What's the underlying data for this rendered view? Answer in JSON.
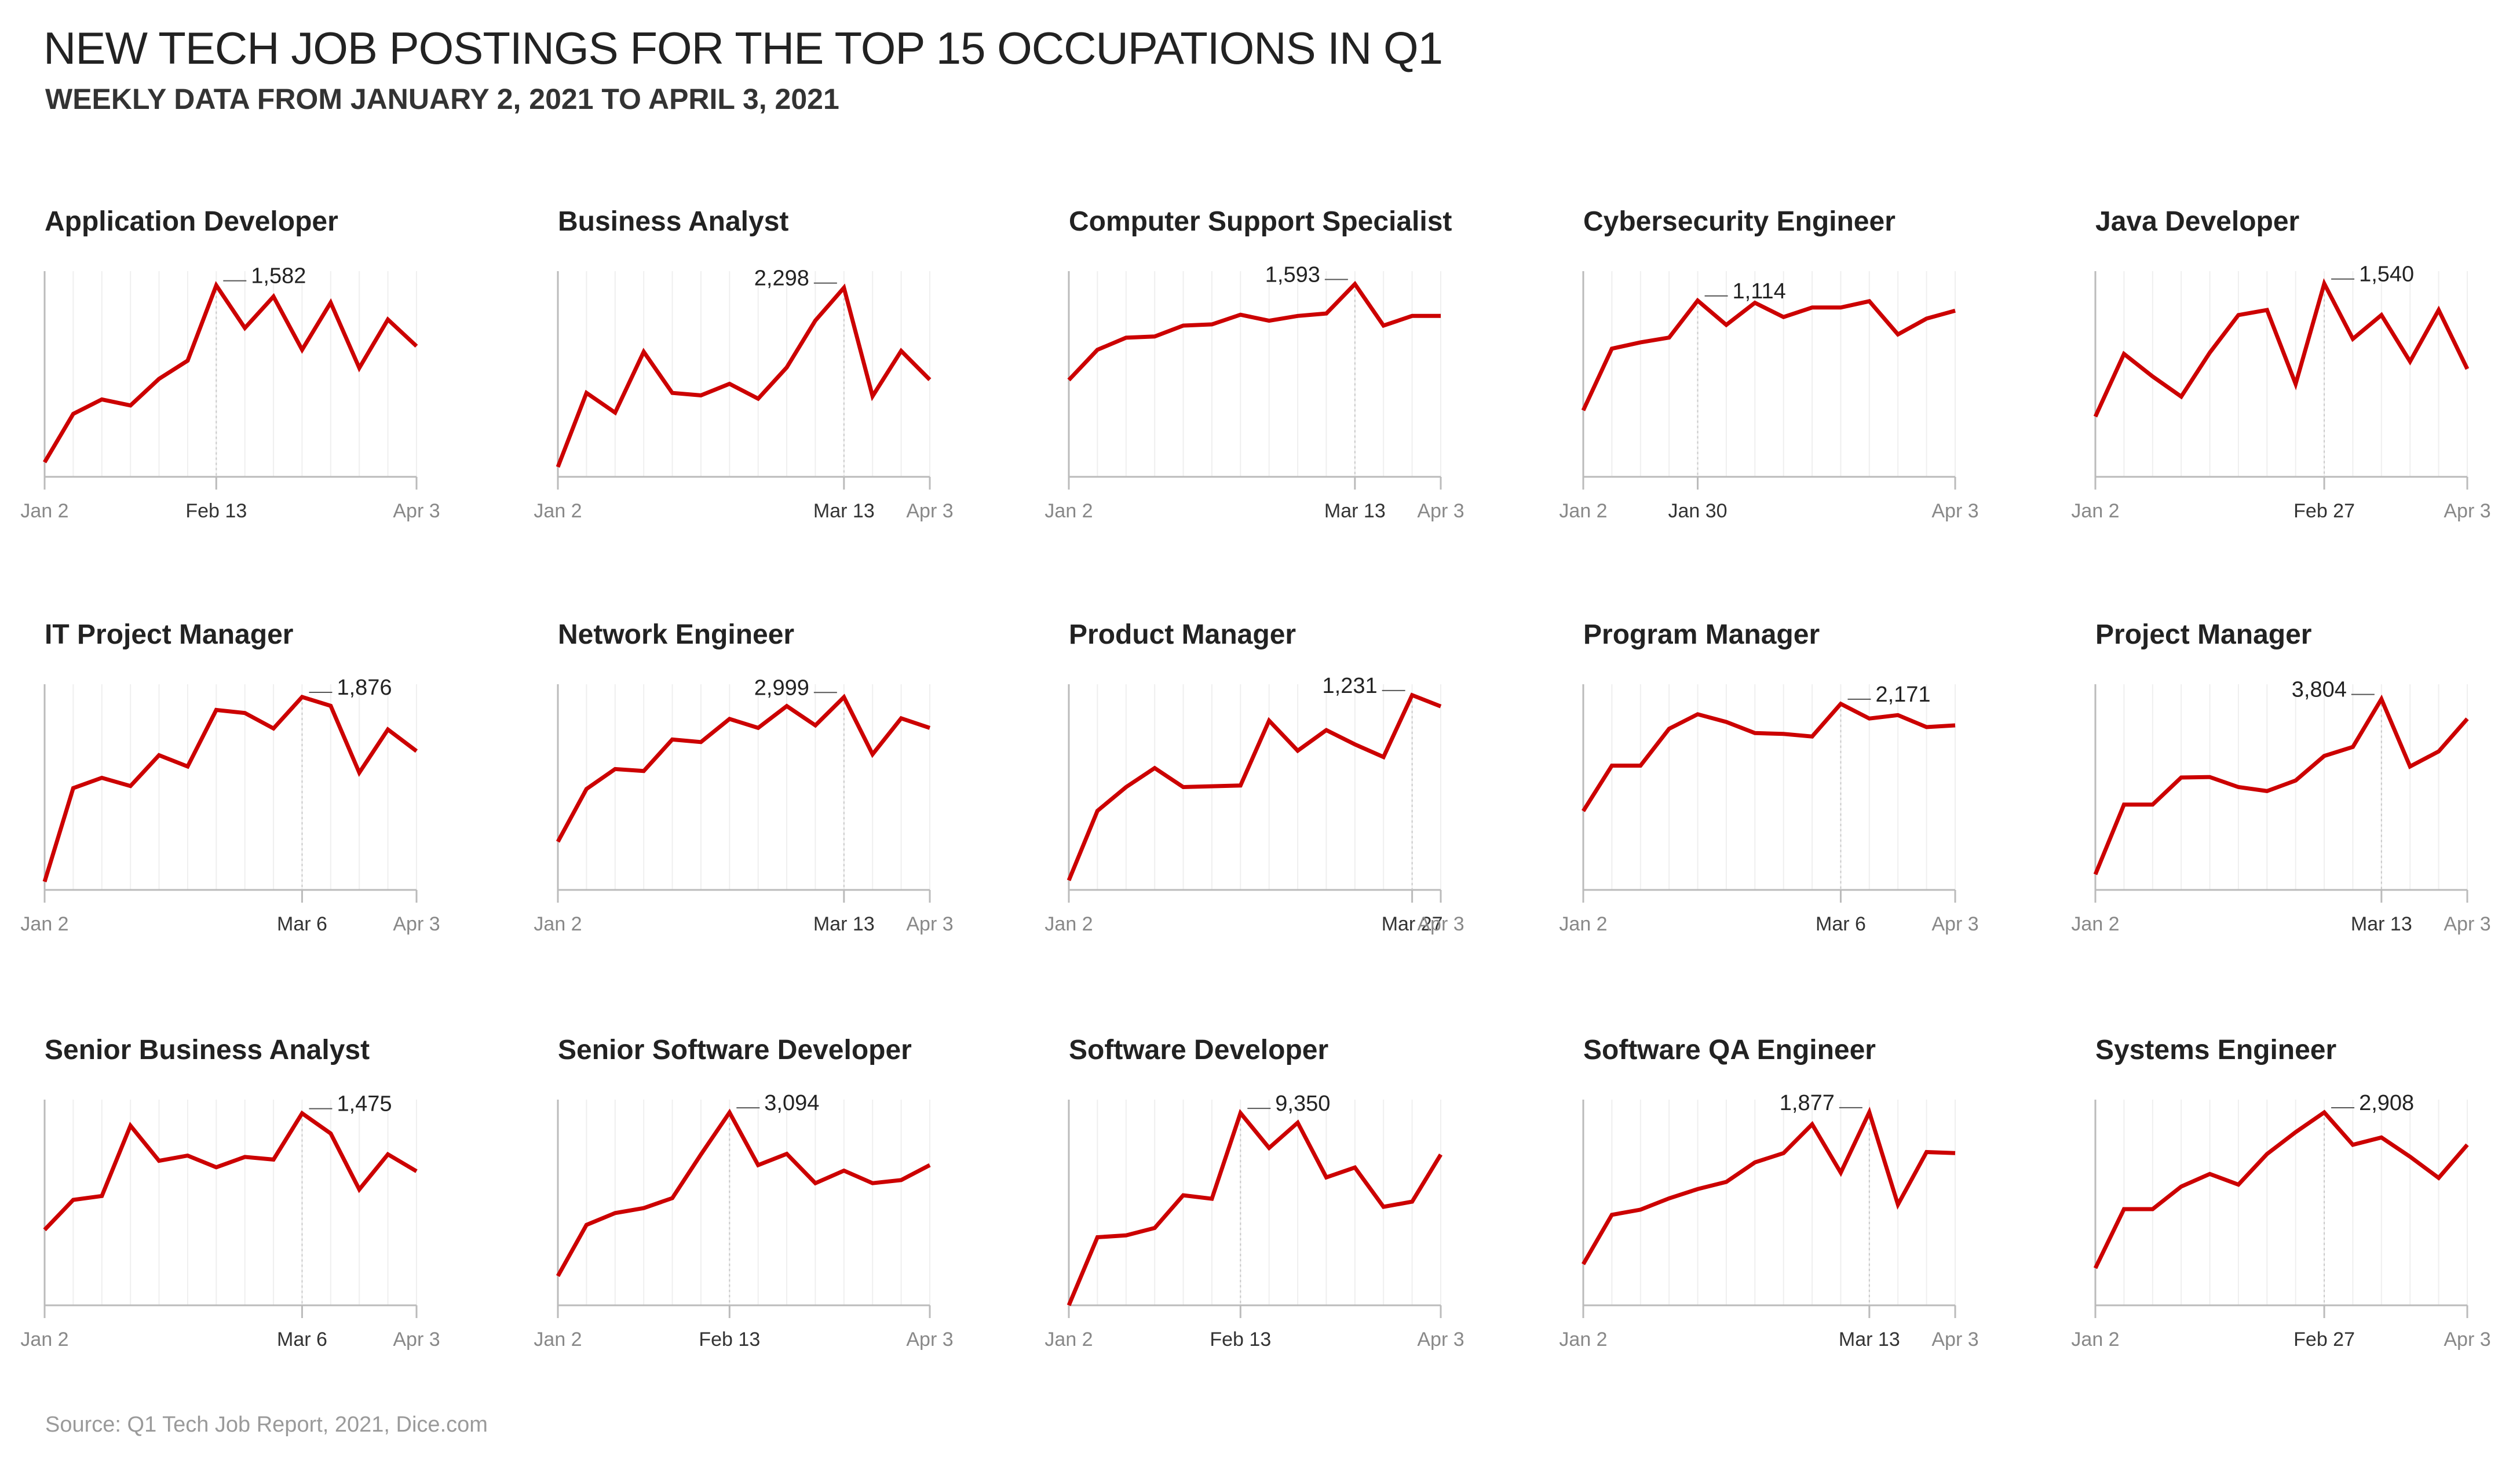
{
  "title": "NEW TECH JOB POSTINGS FOR THE TOP 15 OCCUPATIONS IN Q1",
  "subtitle": "WEEKLY DATA FROM JANUARY 2, 2021 TO APRIL 3, 2021",
  "source": "Source: Q1 Tech Job Report, 2021, Dice.com",
  "colors": {
    "line": "#cc0000",
    "axis": "#bbbbbb",
    "guide": "#efefef",
    "text": "#222222",
    "tick": "#888888"
  },
  "chart_data": [
    {
      "type": "line",
      "title": "Application Developer",
      "x": [
        "Jan 2",
        "Jan 9",
        "Jan 16",
        "Jan 23",
        "Jan 30",
        "Feb 6",
        "Feb 13",
        "Feb 20",
        "Feb 27",
        "Mar 6",
        "Mar 13",
        "Mar 20",
        "Mar 27",
        "Apr 3"
      ],
      "ylim": [
        0,
        1700
      ],
      "series": [
        {
          "values": [
            120,
            520,
            640,
            590,
            810,
            960,
            1582,
            1230,
            1490,
            1050,
            1440,
            900,
            1300,
            1080
          ]
        }
      ],
      "tick_labels": [
        "Jan 2",
        "Feb 13",
        "Apr 3"
      ],
      "peak_label": "1,582",
      "peak_index": 6
    },
    {
      "type": "line",
      "title": "Business Analyst",
      "x": [
        "Jan 2",
        "Jan 9",
        "Jan 16",
        "Jan 23",
        "Jan 30",
        "Feb 6",
        "Feb 13",
        "Feb 20",
        "Feb 27",
        "Mar 6",
        "Mar 13",
        "Mar 20",
        "Mar 27",
        "Apr 3"
      ],
      "ylim": [
        0,
        2500
      ],
      "series": [
        {
          "values": [
            120,
            1020,
            780,
            1520,
            1020,
            990,
            1130,
            950,
            1330,
            1900,
            2298,
            980,
            1530,
            1180
          ]
        }
      ],
      "tick_labels": [
        "Jan 2",
        "Mar 13",
        "Apr 3"
      ],
      "peak_label": "2,298",
      "peak_index": 10
    },
    {
      "type": "line",
      "title": "Computer Support Specialist",
      "x": [
        "Jan 2",
        "Jan 9",
        "Jan 16",
        "Jan 23",
        "Jan 30",
        "Feb 6",
        "Feb 13",
        "Feb 20",
        "Feb 27",
        "Mar 6",
        "Mar 13",
        "Mar 20",
        "Mar 27",
        "Apr 3"
      ],
      "ylim": [
        0,
        1700
      ],
      "series": [
        {
          "values": [
            800,
            1050,
            1150,
            1160,
            1250,
            1260,
            1340,
            1290,
            1330,
            1350,
            1593,
            1250,
            1330,
            1330
          ]
        }
      ],
      "tick_labels": [
        "Jan 2",
        "Mar 13",
        "Apr 3"
      ],
      "peak_label": "1,593",
      "peak_index": 10
    },
    {
      "type": "line",
      "title": "Cybersecurity Engineer",
      "x": [
        "Jan 2",
        "Jan 9",
        "Jan 16",
        "Jan 23",
        "Jan 30",
        "Feb 6",
        "Feb 13",
        "Feb 20",
        "Feb 27",
        "Mar 6",
        "Mar 13",
        "Mar 20",
        "Mar 27",
        "Apr 3"
      ],
      "ylim": [
        0,
        1300
      ],
      "series": [
        {
          "values": [
            420,
            810,
            850,
            880,
            1114,
            960,
            1100,
            1010,
            1070,
            1070,
            1110,
            900,
            1000,
            1050
          ]
        }
      ],
      "tick_labels": [
        "Jan 2",
        "Jan 30",
        "Apr 3"
      ],
      "peak_label": "1,114",
      "peak_index": 4
    },
    {
      "type": "line",
      "title": "Java Developer",
      "x": [
        "Jan 2",
        "Jan 9",
        "Jan 16",
        "Jan 23",
        "Jan 30",
        "Feb 6",
        "Feb 13",
        "Feb 20",
        "Feb 27",
        "Mar 6",
        "Mar 13",
        "Mar 20",
        "Mar 27",
        "Apr 3"
      ],
      "ylim": [
        0,
        1640
      ],
      "series": [
        {
          "values": [
            480,
            980,
            800,
            640,
            990,
            1290,
            1330,
            740,
            1540,
            1100,
            1290,
            920,
            1330,
            860
          ]
        }
      ],
      "tick_labels": [
        "Jan 2",
        "Feb 27",
        "Apr 3"
      ],
      "peak_label": "1,540",
      "peak_index": 8
    },
    {
      "type": "line",
      "title": "IT Project Manager",
      "x": [
        "Jan 2",
        "Jan 9",
        "Jan 16",
        "Jan 23",
        "Jan 30",
        "Feb 6",
        "Feb 13",
        "Feb 20",
        "Feb 27",
        "Mar 6",
        "Mar 13",
        "Mar 20",
        "Mar 27",
        "Apr 3"
      ],
      "ylim": [
        0,
        2000
      ],
      "series": [
        {
          "values": [
            80,
            990,
            1090,
            1010,
            1310,
            1200,
            1750,
            1720,
            1570,
            1876,
            1790,
            1140,
            1560,
            1350
          ]
        }
      ],
      "tick_labels": [
        "Jan 2",
        "Mar 6",
        "Apr 3"
      ],
      "peak_label": "1,876",
      "peak_index": 9
    },
    {
      "type": "line",
      "title": "Network Engineer",
      "x": [
        "Jan 2",
        "Jan 9",
        "Jan 16",
        "Jan 23",
        "Jan 30",
        "Feb 6",
        "Feb 13",
        "Feb 20",
        "Feb 27",
        "Mar 6",
        "Mar 13",
        "Mar 20",
        "Mar 27",
        "Apr 3"
      ],
      "ylim": [
        0,
        3200
      ],
      "series": [
        {
          "values": [
            750,
            1570,
            1880,
            1850,
            2340,
            2300,
            2660,
            2520,
            2860,
            2560,
            2999,
            2110,
            2670,
            2520
          ]
        }
      ],
      "tick_labels": [
        "Jan 2",
        "Mar 13",
        "Apr 3"
      ],
      "peak_label": "2,999",
      "peak_index": 10
    },
    {
      "type": "line",
      "title": "Product Manager",
      "x": [
        "Jan 2",
        "Jan 9",
        "Jan 16",
        "Jan 23",
        "Jan 30",
        "Feb 6",
        "Feb 13",
        "Feb 20",
        "Feb 27",
        "Mar 6",
        "Mar 13",
        "Mar 20",
        "Mar 27",
        "Apr 3"
      ],
      "ylim": [
        0,
        1300
      ],
      "series": [
        {
          "values": [
            60,
            500,
            650,
            770,
            650,
            655,
            660,
            1070,
            880,
            1010,
            920,
            840,
            1231,
            1160
          ]
        }
      ],
      "tick_labels": [
        "Jan 2",
        "Mar 27",
        "Apr 3"
      ],
      "peak_label": "1,231",
      "peak_index": 12
    },
    {
      "type": "line",
      "title": "Program Manager",
      "x": [
        "Jan 2",
        "Jan 9",
        "Jan 16",
        "Jan 23",
        "Jan 30",
        "Feb 6",
        "Feb 13",
        "Feb 20",
        "Feb 27",
        "Mar 6",
        "Mar 13",
        "Mar 20",
        "Mar 27",
        "Apr 3"
      ],
      "ylim": [
        0,
        2400
      ],
      "series": [
        {
          "values": [
            920,
            1450,
            1450,
            1880,
            2050,
            1960,
            1830,
            1820,
            1790,
            2171,
            2000,
            2040,
            1900,
            1920
          ]
        }
      ],
      "tick_labels": [
        "Jan 2",
        "Mar 6",
        "Apr 3"
      ],
      "peak_label": "2,171",
      "peak_index": 9
    },
    {
      "type": "line",
      "title": "Project Manager",
      "x": [
        "Jan 2",
        "Jan 9",
        "Jan 16",
        "Jan 23",
        "Jan 30",
        "Feb 6",
        "Feb 13",
        "Feb 20",
        "Feb 27",
        "Mar 6",
        "Mar 13",
        "Mar 20",
        "Mar 27",
        "Apr 3"
      ],
      "ylim": [
        0,
        4100
      ],
      "series": [
        {
          "values": [
            310,
            1700,
            1700,
            2240,
            2250,
            2050,
            1970,
            2180,
            2670,
            2850,
            3804,
            2460,
            2760,
            3410
          ]
        }
      ],
      "tick_labels": [
        "Jan 2",
        "Mar 13",
        "Apr 3"
      ],
      "peak_label": "3,804",
      "peak_index": 10
    },
    {
      "type": "line",
      "title": "Senior Business Analyst",
      "x": [
        "Jan 2",
        "Jan 9",
        "Jan 16",
        "Jan 23",
        "Jan 30",
        "Feb 6",
        "Feb 13",
        "Feb 20",
        "Feb 27",
        "Mar 6",
        "Mar 13",
        "Mar 20",
        "Mar 27",
        "Apr 3"
      ],
      "ylim": [
        0,
        1580
      ],
      "series": [
        {
          "values": [
            580,
            810,
            840,
            1380,
            1110,
            1150,
            1060,
            1140,
            1120,
            1475,
            1320,
            890,
            1160,
            1030
          ]
        }
      ],
      "tick_labels": [
        "Jan 2",
        "Mar 6",
        "Apr 3"
      ],
      "peak_label": "1,475",
      "peak_index": 9
    },
    {
      "type": "line",
      "title": "Senior Software Developer",
      "x": [
        "Jan 2",
        "Jan 9",
        "Jan 16",
        "Jan 23",
        "Jan 30",
        "Feb 6",
        "Feb 13",
        "Feb 20",
        "Feb 27",
        "Mar 6",
        "Mar 13",
        "Mar 20",
        "Mar 27",
        "Apr 3"
      ],
      "ylim": [
        0,
        3300
      ],
      "series": [
        {
          "values": [
            470,
            1290,
            1480,
            1560,
            1720,
            2420,
            3094,
            2250,
            2430,
            1960,
            2160,
            1960,
            2010,
            2250
          ]
        }
      ],
      "tick_labels": [
        "Jan 2",
        "Feb 13",
        "Apr 3"
      ],
      "peak_label": "3,094",
      "peak_index": 6
    },
    {
      "type": "line",
      "title": "Software Developer",
      "x": [
        "Jan 2",
        "Jan 9",
        "Jan 16",
        "Jan 23",
        "Jan 30",
        "Feb 6",
        "Feb 13",
        "Feb 20",
        "Feb 27",
        "Mar 6",
        "Mar 13",
        "Mar 20",
        "Mar 27",
        "Apr 3"
      ],
      "ylim": [
        0,
        10000
      ],
      "series": [
        {
          "values": [
            0,
            3310,
            3400,
            3760,
            5350,
            5180,
            9350,
            7650,
            8880,
            6220,
            6700,
            4790,
            5040,
            7330
          ]
        }
      ],
      "tick_labels": [
        "Jan 2",
        "Feb 13",
        "Apr 3"
      ],
      "peak_label": "9,350",
      "peak_index": 6
    },
    {
      "type": "line",
      "title": "Software QA Engineer",
      "x": [
        "Jan 2",
        "Jan 9",
        "Jan 16",
        "Jan 23",
        "Jan 30",
        "Feb 6",
        "Feb 13",
        "Feb 20",
        "Feb 27",
        "Mar 6",
        "Mar 13",
        "Mar 20",
        "Mar 27",
        "Apr 3"
      ],
      "ylim": [
        0,
        2000
      ],
      "series": [
        {
          "values": [
            400,
            880,
            930,
            1040,
            1130,
            1200,
            1390,
            1480,
            1760,
            1290,
            1877,
            980,
            1490,
            1480
          ]
        }
      ],
      "tick_labels": [
        "Jan 2",
        "Mar 13",
        "Apr 3"
      ],
      "peak_label": "1,877",
      "peak_index": 10
    },
    {
      "type": "line",
      "title": "Systems Engineer",
      "x": [
        "Jan 2",
        "Jan 9",
        "Jan 16",
        "Jan 23",
        "Jan 30",
        "Feb 6",
        "Feb 13",
        "Feb 20",
        "Feb 27",
        "Mar 6",
        "Mar 13",
        "Mar 20",
        "Mar 27",
        "Apr 3"
      ],
      "ylim": [
        0,
        3100
      ],
      "series": [
        {
          "values": [
            560,
            1450,
            1450,
            1790,
            1980,
            1820,
            2280,
            2610,
            2908,
            2420,
            2530,
            2240,
            1920,
            2420
          ]
        }
      ],
      "tick_labels": [
        "Jan 2",
        "Feb 27",
        "Apr 3"
      ],
      "peak_label": "2,908",
      "peak_index": 8
    }
  ]
}
